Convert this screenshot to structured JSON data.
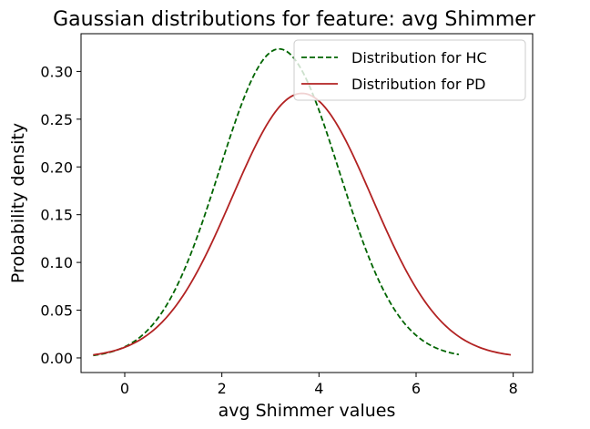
{
  "chart_data": {
    "type": "line",
    "title": "Gaussian distributions for feature: avg Shimmer",
    "xlabel": "avg Shimmer values",
    "ylabel": "Probability density",
    "xlim": [
      -0.9,
      8.4
    ],
    "ylim": [
      -0.0153,
      0.3395
    ],
    "xticks": [
      0,
      2,
      4,
      6,
      8
    ],
    "xtick_labels": [
      "0",
      "2",
      "4",
      "6",
      "8"
    ],
    "yticks": [
      0.0,
      0.05,
      0.1,
      0.15,
      0.2,
      0.25,
      0.3
    ],
    "ytick_labels": [
      "0.00",
      "0.05",
      "0.10",
      "0.15",
      "0.20",
      "0.25",
      "0.30"
    ],
    "legend_position": "top-right",
    "grid": false,
    "series": [
      {
        "name": "Distribution for HC",
        "color": "#006400",
        "style": "dashed",
        "mean": 3.18,
        "std": 1.233,
        "x_range": [
          -0.65,
          6.88
        ],
        "x": [
          -0.65,
          0.0,
          0.5,
          1.0,
          1.5,
          2.0,
          2.5,
          3.0,
          3.18,
          3.5,
          4.0,
          4.5,
          5.0,
          5.5,
          6.0,
          6.5,
          6.88
        ],
        "y": [
          0.003,
          0.012,
          0.03,
          0.064,
          0.128,
          0.204,
          0.279,
          0.32,
          0.323,
          0.311,
          0.26,
          0.183,
          0.112,
          0.054,
          0.023,
          0.009,
          0.004
        ]
      },
      {
        "name": "Distribution for PD",
        "color": "#b22222",
        "style": "solid",
        "mean": 3.65,
        "std": 1.44,
        "x_range": [
          -0.65,
          7.95
        ],
        "x": [
          -0.65,
          0.0,
          0.5,
          1.0,
          1.5,
          2.0,
          2.5,
          3.0,
          3.65,
          4.0,
          4.5,
          5.0,
          5.5,
          6.0,
          6.5,
          7.0,
          7.5,
          7.95
        ],
        "y": [
          0.003,
          0.011,
          0.026,
          0.051,
          0.089,
          0.144,
          0.202,
          0.249,
          0.277,
          0.27,
          0.233,
          0.174,
          0.122,
          0.076,
          0.04,
          0.018,
          0.008,
          0.003
        ]
      }
    ]
  }
}
